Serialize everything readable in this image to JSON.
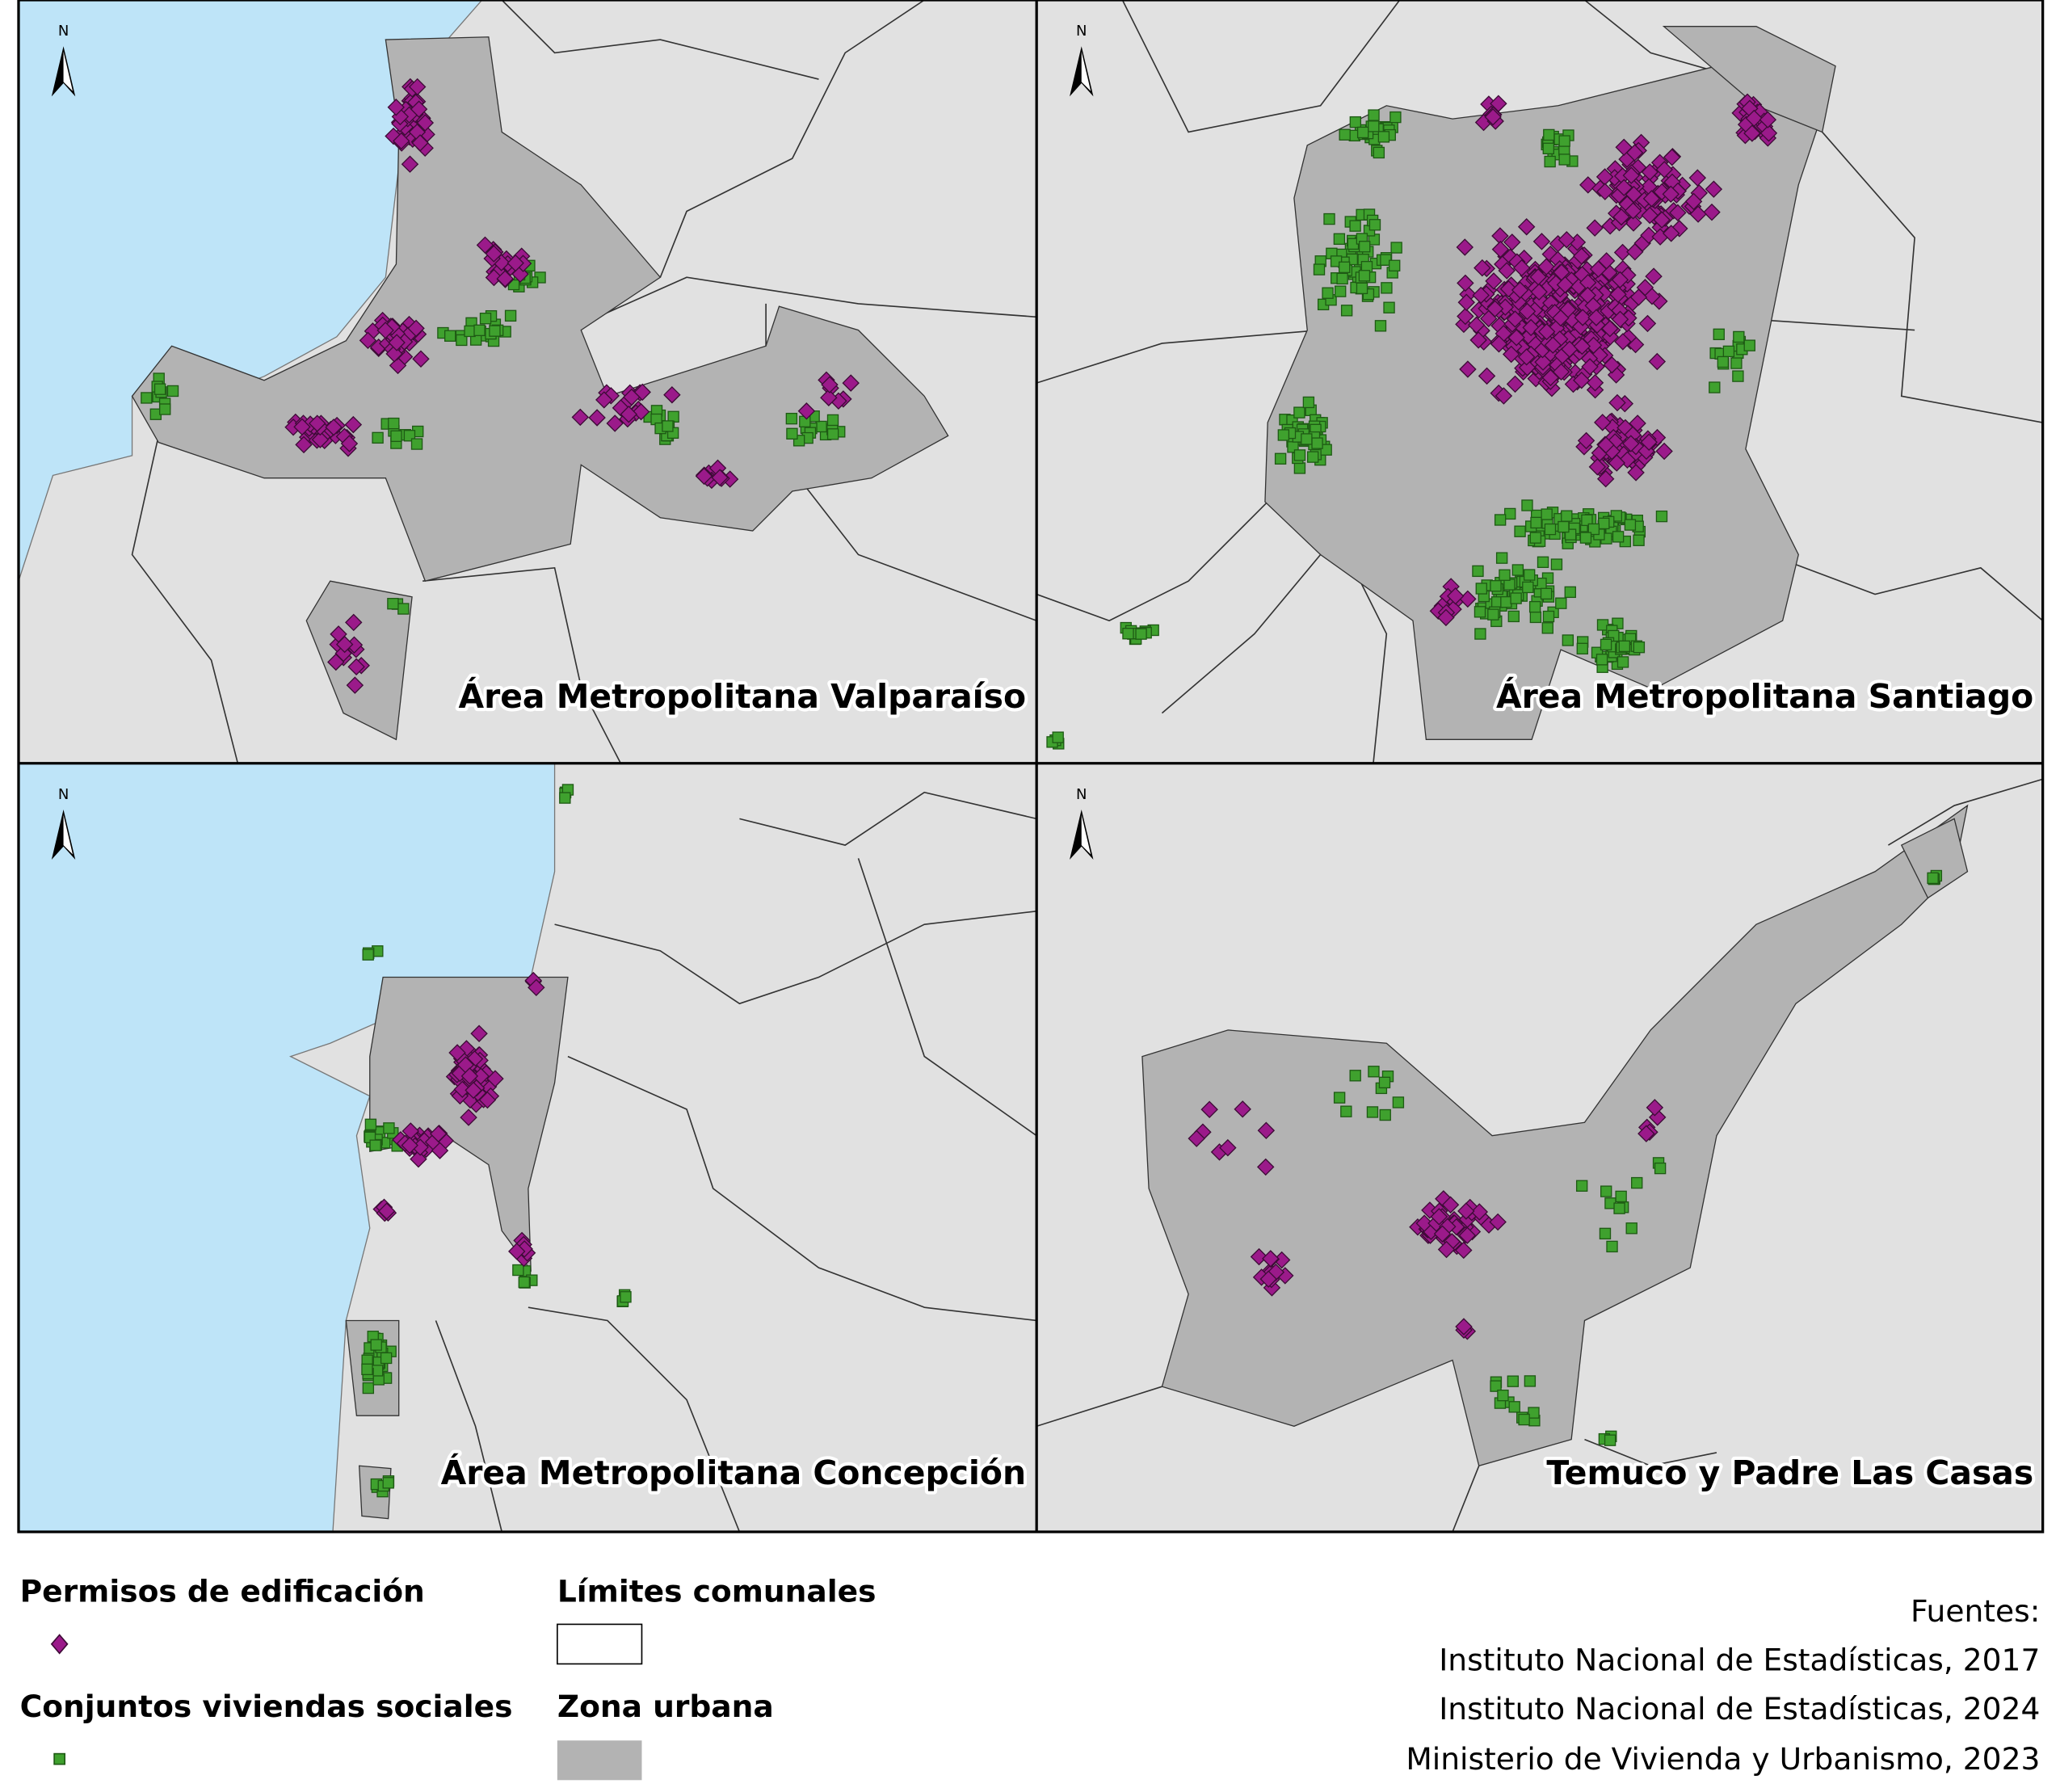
{
  "panels": [
    {
      "label": "Área Metropolitana Valparaíso",
      "north": "N"
    },
    {
      "label": "Área Metropolitana Santiago",
      "north": "N"
    },
    {
      "label": "Área Metropolitana Concepción",
      "north": "N"
    },
    {
      "label": "Temuco y Padre Las Casas",
      "north": "N"
    }
  ],
  "legend": {
    "permits": "Permisos de edificación",
    "social": "Conjuntos viviendas sociales",
    "limits": "Límites comunales",
    "urban": "Zona urbana"
  },
  "sources": {
    "title": "Fuentes:",
    "items": [
      "Instituto Nacional de Estadísticas, 2017",
      "Instituto Nacional de Estadísticas, 2024",
      "Ministerio de Vivienda y Urbanismo, 2023"
    ]
  }
}
